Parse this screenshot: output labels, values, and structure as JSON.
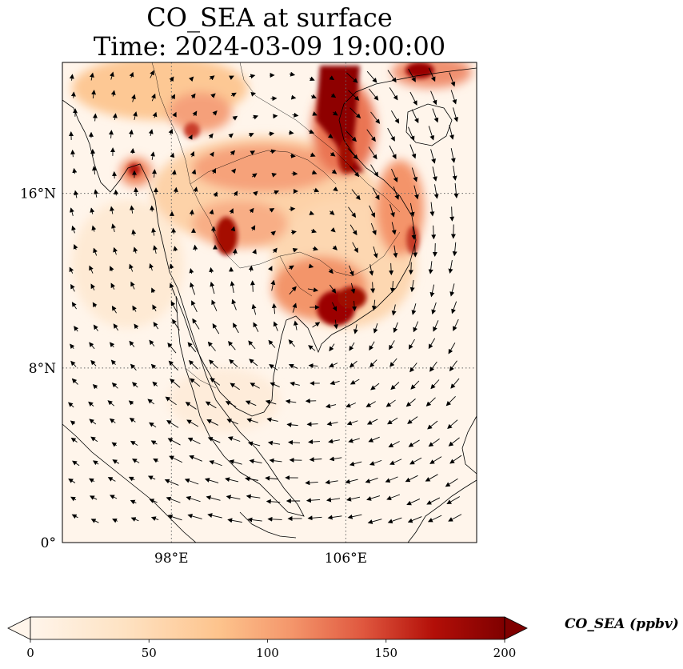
{
  "title": {
    "line1": "CO_SEA at surface",
    "line2": "Time: 2024-03-09 19:00:00"
  },
  "map": {
    "projection": "PlateCarree",
    "lon_range": [
      93,
      112
    ],
    "lat_range": [
      0,
      22
    ],
    "background_color": "#fff5eb",
    "gridlines": "dotted",
    "coastlines": true,
    "borders": true,
    "wind_vectors": true,
    "lon_ticks": [
      {
        "value": 98,
        "label": "98°E"
      },
      {
        "value": 106,
        "label": "106°E"
      }
    ],
    "lat_ticks": [
      {
        "value": 0,
        "label": "0°"
      },
      {
        "value": 8,
        "label": "8°N"
      },
      {
        "value": 16,
        "label": "16°N"
      }
    ]
  },
  "colorbar": {
    "colormap": "OrRd",
    "min": 0,
    "max": 200,
    "extend": "both",
    "ticks": [
      {
        "value": 0,
        "label": "0"
      },
      {
        "value": 50,
        "label": "50"
      },
      {
        "value": 100,
        "label": "100"
      },
      {
        "value": 150,
        "label": "150"
      },
      {
        "value": 200,
        "label": "200"
      }
    ],
    "label": "CO_SEA (ppbv)"
  }
}
